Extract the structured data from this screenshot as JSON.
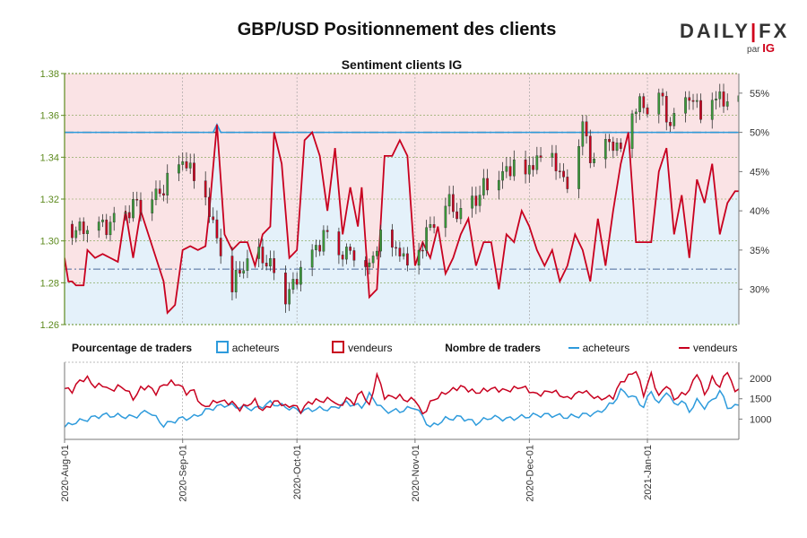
{
  "header": {
    "title": "GBP/USD Positionnement des clients",
    "subtitle": "Sentiment clients IG",
    "logo_main_a": "DAILY",
    "logo_sep": "|",
    "logo_main_b": "FX",
    "logo_sub": "par",
    "logo_ig": "IG"
  },
  "legend": {
    "pct_label": "Pourcentage de traders",
    "buyers": "acheteurs",
    "sellers": "vendeurs",
    "count_label": "Nombre de traders",
    "buyers2": "acheteurs",
    "sellers2": "vendeurs"
  },
  "colors": {
    "buyers": "#2e9bdc",
    "sellers": "#c8001f",
    "buyer_fill": "#e4f1fa",
    "seller_fill": "#fae3e5",
    "candle_up": "#3a9a3a",
    "candle_down": "#c8001f",
    "axis_green": "#5d8a1e"
  },
  "chart_data": {
    "type": "candlestick+line",
    "title": "GBP/USD Positionnement des clients",
    "subtitle": "Sentiment clients IG",
    "price_axis": {
      "ticks": [
        "1.38",
        "1.36",
        "1.34",
        "1.32",
        "1.30",
        "1.28",
        "1.26"
      ],
      "ylim": [
        1.26,
        1.38
      ]
    },
    "sentiment_axis": {
      "ticks": [
        "55%",
        "50%",
        "45%",
        "40%",
        "35%",
        "30%"
      ],
      "ylim": [
        25.5,
        57.5
      ]
    },
    "count_axis": {
      "ticks": [
        "2000",
        "1500",
        "1000"
      ],
      "ylim": [
        500,
        2400
      ]
    },
    "x_labels": [
      "2020-Aug-01",
      "2020-Sep-01",
      "2020-Oct-01",
      "2020-Nov-01",
      "2020-Dec-01",
      "2021-Jan-01"
    ],
    "n_days": 178,
    "x_label_days": [
      0,
      31,
      61,
      92,
      122,
      153
    ],
    "reference_lines": {
      "fifty_pct": 50,
      "price_level": 1.2865
    },
    "price_keyframes": [
      [
        0,
        1.308
      ],
      [
        4,
        1.305
      ],
      [
        8,
        1.305
      ],
      [
        12,
        1.309
      ],
      [
        16,
        1.314
      ],
      [
        20,
        1.318
      ],
      [
        24,
        1.322
      ],
      [
        28,
        1.33
      ],
      [
        31,
        1.338
      ],
      [
        34,
        1.331
      ],
      [
        37,
        1.32
      ],
      [
        40,
        1.303
      ],
      [
        42,
        1.283
      ],
      [
        44,
        1.279
      ],
      [
        48,
        1.29
      ],
      [
        52,
        1.293
      ],
      [
        56,
        1.283
      ],
      [
        58,
        1.274
      ],
      [
        60,
        1.277
      ],
      [
        62,
        1.289
      ],
      [
        64,
        1.291
      ],
      [
        68,
        1.303
      ],
      [
        72,
        1.292
      ],
      [
        76,
        1.296
      ],
      [
        80,
        1.289
      ],
      [
        84,
        1.305
      ],
      [
        86,
        1.294
      ],
      [
        88,
        1.295
      ],
      [
        90,
        1.29
      ],
      [
        92,
        1.293
      ],
      [
        94,
        1.3
      ],
      [
        96,
        1.307
      ],
      [
        98,
        1.308
      ],
      [
        100,
        1.318
      ],
      [
        104,
        1.313
      ],
      [
        108,
        1.321
      ],
      [
        112,
        1.328
      ],
      [
        116,
        1.333
      ],
      [
        118,
        1.339
      ],
      [
        120,
        1.331
      ],
      [
        122,
        1.335
      ],
      [
        124,
        1.338
      ],
      [
        126,
        1.337
      ],
      [
        128,
        1.338
      ],
      [
        130,
        1.333
      ],
      [
        132,
        1.328
      ],
      [
        134,
        1.345
      ],
      [
        136,
        1.356
      ],
      [
        138,
        1.339
      ],
      [
        140,
        1.336
      ],
      [
        142,
        1.344
      ],
      [
        144,
        1.348
      ],
      [
        146,
        1.343
      ],
      [
        148,
        1.361
      ],
      [
        150,
        1.365
      ],
      [
        152,
        1.363
      ],
      [
        154,
        1.366
      ],
      [
        156,
        1.371
      ],
      [
        158,
        1.36
      ],
      [
        160,
        1.356
      ],
      [
        162,
        1.365
      ],
      [
        164,
        1.369
      ],
      [
        166,
        1.363
      ],
      [
        168,
        1.361
      ],
      [
        170,
        1.368
      ],
      [
        172,
        1.37
      ],
      [
        174,
        1.365
      ],
      [
        176,
        1.369
      ],
      [
        177,
        1.371
      ]
    ],
    "sentiment_seller_pct_keyframes": [
      [
        0,
        34
      ],
      [
        1,
        31
      ],
      [
        2,
        31
      ],
      [
        3,
        30.5
      ],
      [
        5,
        30.5
      ],
      [
        6,
        35
      ],
      [
        8,
        34
      ],
      [
        10,
        34.5
      ],
      [
        12,
        34
      ],
      [
        14,
        33.5
      ],
      [
        16,
        40
      ],
      [
        18,
        34
      ],
      [
        20,
        40
      ],
      [
        22,
        37
      ],
      [
        24,
        34
      ],
      [
        26,
        31
      ],
      [
        27,
        27
      ],
      [
        29,
        28
      ],
      [
        31,
        35
      ],
      [
        33,
        35.5
      ],
      [
        35,
        35
      ],
      [
        37,
        35.5
      ],
      [
        38,
        40
      ],
      [
        40,
        51
      ],
      [
        42,
        37
      ],
      [
        44,
        35
      ],
      [
        46,
        36
      ],
      [
        48,
        36
      ],
      [
        50,
        33
      ],
      [
        52,
        37
      ],
      [
        54,
        38
      ],
      [
        55,
        50
      ],
      [
        57,
        46
      ],
      [
        59,
        34
      ],
      [
        61,
        35
      ],
      [
        63,
        49
      ],
      [
        65,
        50
      ],
      [
        67,
        47
      ],
      [
        69,
        40
      ],
      [
        71,
        48
      ],
      [
        73,
        37
      ],
      [
        75,
        43
      ],
      [
        77,
        38
      ],
      [
        78,
        43
      ],
      [
        80,
        29
      ],
      [
        82,
        30
      ],
      [
        84,
        47
      ],
      [
        86,
        47
      ],
      [
        88,
        49
      ],
      [
        90,
        47
      ],
      [
        92,
        33
      ],
      [
        94,
        36
      ],
      [
        96,
        34
      ],
      [
        98,
        38
      ],
      [
        100,
        32
      ],
      [
        102,
        34
      ],
      [
        104,
        37
      ],
      [
        106,
        39
      ],
      [
        108,
        33
      ],
      [
        110,
        36
      ],
      [
        112,
        36
      ],
      [
        114,
        30
      ],
      [
        116,
        37
      ],
      [
        118,
        36
      ],
      [
        120,
        40
      ],
      [
        122,
        38
      ],
      [
        124,
        35
      ],
      [
        126,
        33
      ],
      [
        128,
        35
      ],
      [
        130,
        31
      ],
      [
        132,
        33
      ],
      [
        134,
        37
      ],
      [
        136,
        35
      ],
      [
        138,
        31
      ],
      [
        140,
        39
      ],
      [
        142,
        33
      ],
      [
        144,
        40
      ],
      [
        146,
        46
      ],
      [
        148,
        50
      ],
      [
        150,
        36
      ],
      [
        152,
        36
      ],
      [
        154,
        36
      ],
      [
        156,
        45
      ],
      [
        158,
        48
      ],
      [
        160,
        37
      ],
      [
        162,
        42
      ],
      [
        164,
        34
      ],
      [
        166,
        44
      ],
      [
        168,
        41
      ],
      [
        170,
        46
      ],
      [
        172,
        37
      ],
      [
        174,
        41
      ],
      [
        176,
        42.5
      ],
      [
        177,
        42.5
      ]
    ],
    "count_buyers_keyframes": [
      [
        0,
        800
      ],
      [
        2,
        900
      ],
      [
        6,
        1000
      ],
      [
        10,
        1100
      ],
      [
        14,
        1080
      ],
      [
        18,
        1050
      ],
      [
        22,
        1200
      ],
      [
        26,
        850
      ],
      [
        30,
        1000
      ],
      [
        34,
        1050
      ],
      [
        38,
        1250
      ],
      [
        42,
        1350
      ],
      [
        46,
        1300
      ],
      [
        50,
        1250
      ],
      [
        54,
        1400
      ],
      [
        58,
        1300
      ],
      [
        62,
        1200
      ],
      [
        66,
        1250
      ],
      [
        70,
        1250
      ],
      [
        74,
        1400
      ],
      [
        78,
        1300
      ],
      [
        80,
        1600
      ],
      [
        84,
        1200
      ],
      [
        88,
        1200
      ],
      [
        92,
        1300
      ],
      [
        96,
        800
      ],
      [
        100,
        1000
      ],
      [
        104,
        1050
      ],
      [
        108,
        900
      ],
      [
        112,
        1050
      ],
      [
        116,
        1000
      ],
      [
        120,
        1050
      ],
      [
        124,
        1100
      ],
      [
        128,
        1100
      ],
      [
        132,
        1050
      ],
      [
        136,
        1100
      ],
      [
        140,
        1150
      ],
      [
        144,
        1400
      ],
      [
        146,
        1700
      ],
      [
        150,
        1500
      ],
      [
        152,
        1300
      ],
      [
        154,
        1700
      ],
      [
        156,
        1350
      ],
      [
        158,
        1700
      ],
      [
        160,
        1350
      ],
      [
        162,
        1450
      ],
      [
        164,
        1200
      ],
      [
        166,
        1450
      ],
      [
        168,
        1300
      ],
      [
        170,
        1450
      ],
      [
        172,
        1700
      ],
      [
        174,
        1300
      ],
      [
        176,
        1300
      ],
      [
        177,
        1350
      ]
    ],
    "count_sellers_keyframes": [
      [
        0,
        1750
      ],
      [
        2,
        1700
      ],
      [
        4,
        1950
      ],
      [
        6,
        2000
      ],
      [
        8,
        1800
      ],
      [
        10,
        1850
      ],
      [
        12,
        1700
      ],
      [
        14,
        1800
      ],
      [
        16,
        1750
      ],
      [
        18,
        1500
      ],
      [
        20,
        1750
      ],
      [
        22,
        1800
      ],
      [
        24,
        1650
      ],
      [
        26,
        1850
      ],
      [
        28,
        1900
      ],
      [
        30,
        1850
      ],
      [
        32,
        1650
      ],
      [
        34,
        1700
      ],
      [
        36,
        1300
      ],
      [
        38,
        1350
      ],
      [
        40,
        1450
      ],
      [
        44,
        1400
      ],
      [
        46,
        1250
      ],
      [
        48,
        1350
      ],
      [
        50,
        1450
      ],
      [
        52,
        1200
      ],
      [
        54,
        1350
      ],
      [
        56,
        1450
      ],
      [
        58,
        1300
      ],
      [
        60,
        1350
      ],
      [
        62,
        1200
      ],
      [
        64,
        1400
      ],
      [
        66,
        1450
      ],
      [
        68,
        1450
      ],
      [
        70,
        1500
      ],
      [
        72,
        1300
      ],
      [
        74,
        1500
      ],
      [
        76,
        1400
      ],
      [
        78,
        1700
      ],
      [
        80,
        1300
      ],
      [
        82,
        2100
      ],
      [
        84,
        1550
      ],
      [
        86,
        1550
      ],
      [
        88,
        1550
      ],
      [
        90,
        1450
      ],
      [
        92,
        1500
      ],
      [
        94,
        1100
      ],
      [
        96,
        1400
      ],
      [
        98,
        1550
      ],
      [
        100,
        1650
      ],
      [
        104,
        1800
      ],
      [
        108,
        1650
      ],
      [
        112,
        1750
      ],
      [
        116,
        1700
      ],
      [
        120,
        1800
      ],
      [
        124,
        1600
      ],
      [
        128,
        1700
      ],
      [
        132,
        1500
      ],
      [
        136,
        1700
      ],
      [
        140,
        1500
      ],
      [
        144,
        1550
      ],
      [
        146,
        1900
      ],
      [
        150,
        2200
      ],
      [
        152,
        1600
      ],
      [
        154,
        2100
      ],
      [
        156,
        1550
      ],
      [
        158,
        1850
      ],
      [
        160,
        1500
      ],
      [
        162,
        1600
      ],
      [
        164,
        1700
      ],
      [
        166,
        2150
      ],
      [
        168,
        1600
      ],
      [
        170,
        2000
      ],
      [
        172,
        1800
      ],
      [
        174,
        2200
      ],
      [
        176,
        1650
      ],
      [
        177,
        1800
      ]
    ]
  }
}
